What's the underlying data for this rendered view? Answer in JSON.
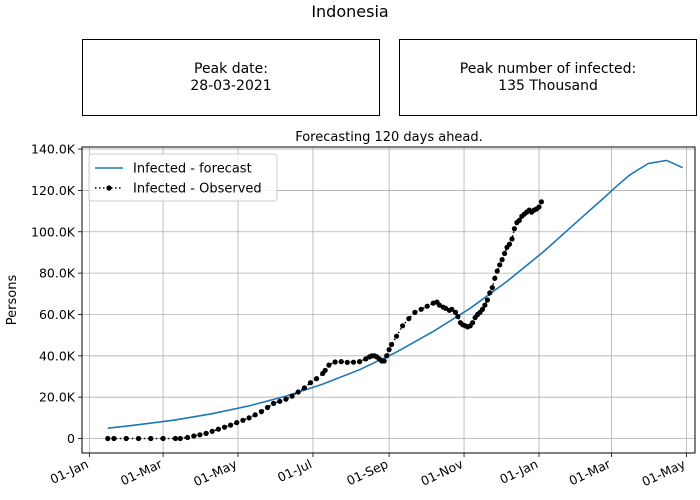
{
  "figure": {
    "title": "Indonesia",
    "peak_date": {
      "label": "Peak date:",
      "value": "28-03-2021"
    },
    "peak_infected": {
      "label": "Peak number of infected:",
      "value": "135 Thousand"
    }
  },
  "chart_data": {
    "type": "line",
    "title": "Forecasting 120 days ahead.",
    "xlabel": "",
    "ylabel": "Persons",
    "x_unit": "day-of-year offset from 01-Jan-2020",
    "xlim": [
      -6,
      493
    ],
    "ylim": [
      -7000,
      141000
    ],
    "x_ticks": [
      {
        "x": 0,
        "label": "01-Jan"
      },
      {
        "x": 60,
        "label": "01-Mar"
      },
      {
        "x": 121,
        "label": "01-May"
      },
      {
        "x": 182,
        "label": "01-Jul"
      },
      {
        "x": 244,
        "label": "01-Sep"
      },
      {
        "x": 305,
        "label": "01-Nov"
      },
      {
        "x": 366,
        "label": "01-Jan"
      },
      {
        "x": 425,
        "label": "01-Mar"
      },
      {
        "x": 486,
        "label": "01-May"
      }
    ],
    "y_ticks": [
      {
        "y": 0,
        "label": "0"
      },
      {
        "y": 20000,
        "label": "20.0K"
      },
      {
        "y": 40000,
        "label": "40.0K"
      },
      {
        "y": 60000,
        "label": "60.0K"
      },
      {
        "y": 80000,
        "label": "80.0K"
      },
      {
        "y": 100000,
        "label": "100.0K"
      },
      {
        "y": 120000,
        "label": "120.0K"
      },
      {
        "y": 140000,
        "label": "140.0K"
      }
    ],
    "grid": true,
    "legend_position": "top-left",
    "series": [
      {
        "name": "Infected - forecast",
        "color": "#1f77b4",
        "style": "line",
        "x": [
          15,
          40,
          70,
          100,
          130,
          160,
          190,
          220,
          250,
          280,
          310,
          340,
          370,
          400,
          420,
          430,
          440,
          455,
          470,
          483
        ],
        "y": [
          5000,
          6700,
          9000,
          12000,
          15800,
          20500,
          26300,
          33300,
          41800,
          51800,
          63000,
          76000,
          90500,
          106500,
          117000,
          122500,
          127500,
          133000,
          134500,
          131000
        ]
      },
      {
        "name": "Infected - Observed",
        "color": "#000000",
        "style": "dotted-markers",
        "x": [
          15,
          20,
          30,
          40,
          50,
          60,
          70,
          74,
          80,
          85,
          90,
          95,
          100,
          105,
          110,
          115,
          120,
          125,
          130,
          135,
          140,
          145,
          150,
          155,
          160,
          165,
          170,
          175,
          180,
          185,
          190,
          192,
          195,
          200,
          205,
          210,
          215,
          220,
          225,
          228,
          230,
          232,
          234,
          236,
          238,
          240,
          242,
          244,
          246,
          250,
          255,
          260,
          265,
          270,
          275,
          280,
          283,
          285,
          288,
          290,
          293,
          295,
          298,
          300,
          302,
          304,
          306,
          308,
          310,
          312,
          314,
          316,
          318,
          320,
          322,
          324,
          326,
          328,
          330,
          332,
          334,
          336,
          338,
          340,
          342,
          344,
          346,
          348,
          350,
          352,
          354,
          356,
          358,
          360,
          362,
          364,
          366,
          368
        ],
        "y": [
          0,
          0,
          0,
          0,
          0,
          0,
          0,
          0,
          500,
          1200,
          1800,
          2500,
          3500,
          4500,
          5500,
          6500,
          7700,
          8800,
          10000,
          11500,
          13000,
          15000,
          17000,
          18000,
          19000,
          20500,
          22500,
          24500,
          27000,
          29000,
          31500,
          33000,
          35500,
          37000,
          37200,
          36800,
          36900,
          37200,
          38500,
          39500,
          40000,
          40000,
          39500,
          38500,
          37500,
          37500,
          40000,
          43000,
          45500,
          49500,
          54500,
          58000,
          61000,
          62500,
          64000,
          65500,
          66000,
          64500,
          63500,
          63000,
          62000,
          62500,
          61000,
          59000,
          56000,
          55000,
          54500,
          54000,
          54500,
          56000,
          58500,
          60000,
          61000,
          62500,
          64500,
          67000,
          70500,
          73000,
          77500,
          81000,
          84000,
          86500,
          89500,
          92500,
          94000,
          96500,
          101500,
          104500,
          105500,
          107500,
          108500,
          109500,
          110500,
          109500,
          110500,
          111000,
          112000,
          114500
        ]
      }
    ]
  }
}
